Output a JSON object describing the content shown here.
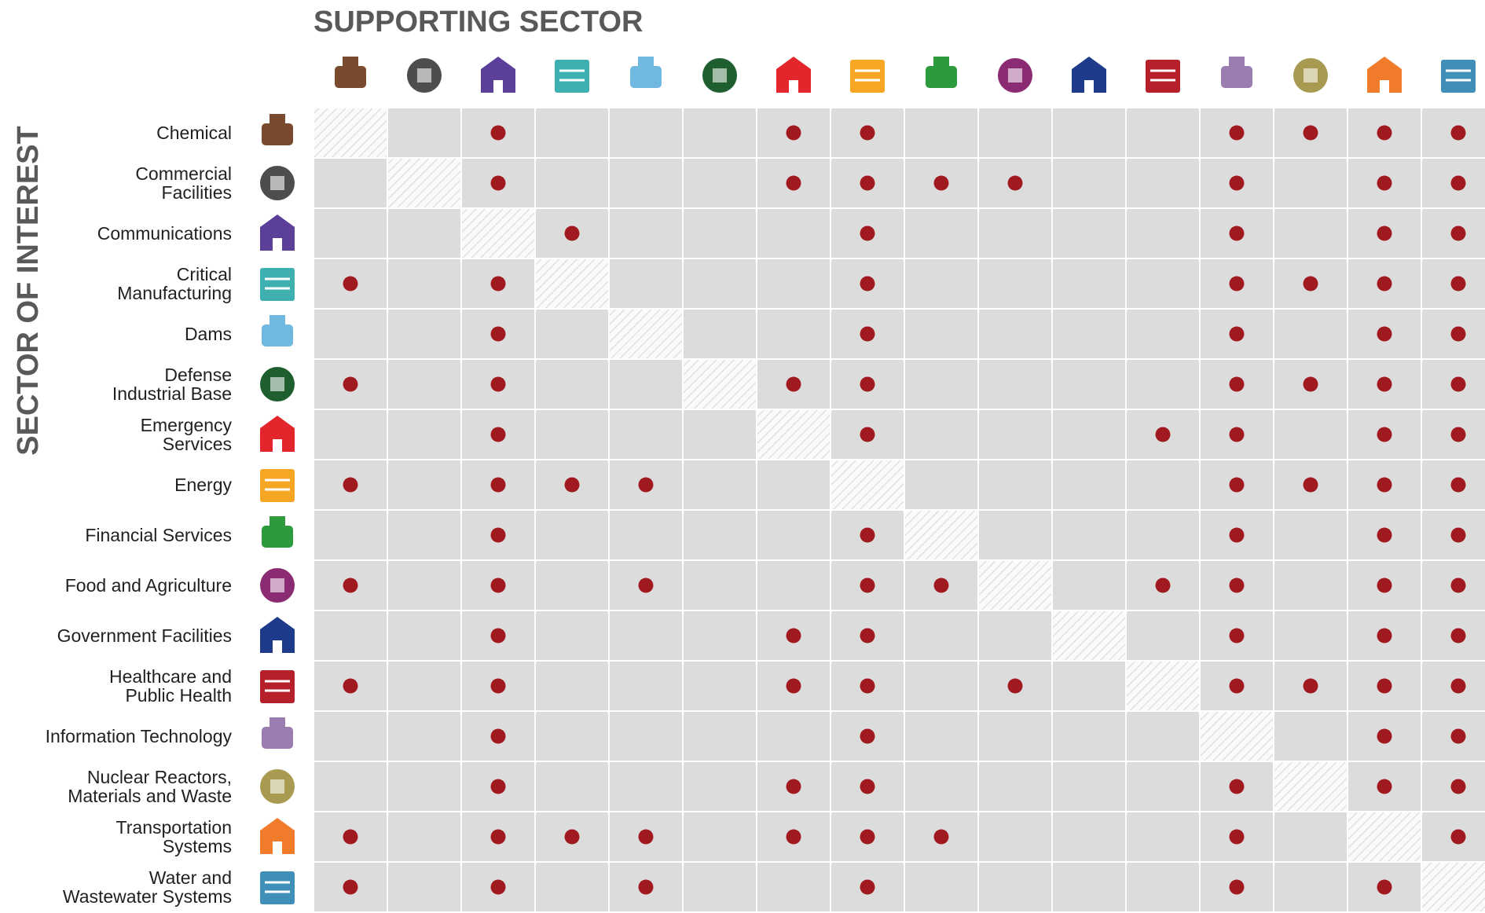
{
  "title": "SUPPORTING SECTOR",
  "row_title": "SECTOR OF INTEREST",
  "sectors": [
    {
      "label": [
        "Chemical"
      ],
      "color": "#7a4a2e"
    },
    {
      "label": [
        "Commercial",
        "Facilities"
      ],
      "color": "#4d4d4f"
    },
    {
      "label": [
        "Communications"
      ],
      "color": "#5b3f99"
    },
    {
      "label": [
        "Critical",
        "Manufacturing"
      ],
      "color": "#3fb0b0"
    },
    {
      "label": [
        "Dams"
      ],
      "color": "#6fb8df"
    },
    {
      "label": [
        "Defense",
        "Industrial Base"
      ],
      "color": "#1f5e2e"
    },
    {
      "label": [
        "Emergency",
        "Services"
      ],
      "color": "#e2262b"
    },
    {
      "label": [
        "Energy"
      ],
      "color": "#f6a623"
    },
    {
      "label": [
        "Financial Services"
      ],
      "color": "#2e9a3e"
    },
    {
      "label": [
        "Food and Agriculture"
      ],
      "color": "#8b2b73"
    },
    {
      "label": [
        "Government Facilities"
      ],
      "color": "#1d3b8a"
    },
    {
      "label": [
        "Healthcare and",
        "Public Health"
      ],
      "color": "#b5202a"
    },
    {
      "label": [
        "Information Technology"
      ],
      "color": "#9b7eb1"
    },
    {
      "label": [
        "Nuclear Reactors,",
        "Materials and Waste"
      ],
      "color": "#a99a52"
    },
    {
      "label": [
        "Transportation",
        "Systems"
      ],
      "color": "#f07b2b"
    },
    {
      "label": [
        "Water and",
        "Wastewater Systems"
      ],
      "color": "#3f8fb8"
    }
  ],
  "matrix": [
    [
      false,
      false,
      true,
      false,
      false,
      false,
      true,
      true,
      false,
      false,
      false,
      false,
      true,
      true,
      true,
      true
    ],
    [
      false,
      false,
      true,
      false,
      false,
      false,
      true,
      true,
      true,
      true,
      false,
      false,
      true,
      false,
      true,
      true
    ],
    [
      false,
      false,
      false,
      true,
      false,
      false,
      false,
      true,
      false,
      false,
      false,
      false,
      true,
      false,
      true,
      true
    ],
    [
      true,
      false,
      true,
      false,
      false,
      false,
      false,
      true,
      false,
      false,
      false,
      false,
      true,
      true,
      true,
      true
    ],
    [
      false,
      false,
      true,
      false,
      false,
      false,
      false,
      true,
      false,
      false,
      false,
      false,
      true,
      false,
      true,
      true
    ],
    [
      true,
      false,
      true,
      false,
      false,
      false,
      true,
      true,
      false,
      false,
      false,
      false,
      true,
      true,
      true,
      true
    ],
    [
      false,
      false,
      true,
      false,
      false,
      false,
      false,
      true,
      false,
      false,
      false,
      true,
      true,
      false,
      true,
      true
    ],
    [
      true,
      false,
      true,
      true,
      true,
      false,
      false,
      false,
      false,
      false,
      false,
      false,
      true,
      true,
      true,
      true
    ],
    [
      false,
      false,
      true,
      false,
      false,
      false,
      false,
      true,
      false,
      false,
      false,
      false,
      true,
      false,
      true,
      true
    ],
    [
      true,
      false,
      true,
      false,
      true,
      false,
      false,
      true,
      true,
      false,
      false,
      true,
      true,
      false,
      true,
      true
    ],
    [
      false,
      false,
      true,
      false,
      false,
      false,
      true,
      true,
      false,
      false,
      false,
      false,
      true,
      false,
      true,
      true
    ],
    [
      true,
      false,
      true,
      false,
      false,
      false,
      true,
      true,
      false,
      true,
      false,
      false,
      true,
      true,
      true,
      true
    ],
    [
      false,
      false,
      true,
      false,
      false,
      false,
      false,
      true,
      false,
      false,
      false,
      false,
      false,
      false,
      true,
      true
    ],
    [
      false,
      false,
      true,
      false,
      false,
      false,
      true,
      true,
      false,
      false,
      false,
      false,
      true,
      false,
      true,
      true
    ],
    [
      true,
      false,
      true,
      true,
      true,
      false,
      true,
      true,
      true,
      false,
      false,
      false,
      true,
      false,
      false,
      true
    ],
    [
      true,
      false,
      true,
      false,
      true,
      false,
      false,
      true,
      false,
      false,
      false,
      false,
      true,
      false,
      true,
      false
    ]
  ]
}
